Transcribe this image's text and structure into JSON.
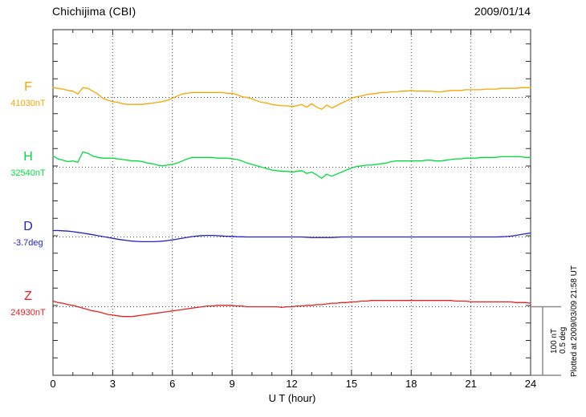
{
  "header": {
    "title": "Chichijima (CBI)",
    "date": "2009/01/14"
  },
  "axis": {
    "xlabel": "U T (hour)",
    "xticks": [
      0,
      3,
      6,
      9,
      12,
      15,
      18,
      21,
      24
    ],
    "xmin": 0,
    "xmax": 24
  },
  "scalebar": {
    "label_nT": "100 nT",
    "label_deg": "0.5 deg"
  },
  "footer_note": "Plotted at 2009/03/09 21:58 UT",
  "grid_color": "#444444",
  "frame_color": "#2a2a2a",
  "scalebar_color": "#888888",
  "channels": [
    {
      "label": "F",
      "base_label": "41030nT",
      "color": "#F7A600"
    },
    {
      "label": "H",
      "base_label": "32540nT",
      "color": "#00DC3C"
    },
    {
      "label": "D",
      "base_label": "-3.7deg",
      "color": "#2222CC"
    },
    {
      "label": "Z",
      "base_label": "24930nT",
      "color": "#E62222"
    }
  ],
  "chart_data": {
    "type": "line",
    "title": "Chichijima (CBI)",
    "date": "2009/01/14",
    "xlabel": "U T (hour)",
    "xticks": [
      0,
      3,
      6,
      9,
      12,
      15,
      18,
      21,
      24
    ],
    "x_range": [
      0,
      24
    ],
    "x_step_hours": 0.25,
    "grid": "dotted vertical lines every 3 h; dotted horizontal baseline per trace",
    "legend_position": "left margin, one colored label per trace",
    "scale": {
      "nT_per_division": 100,
      "deg_per_division": 0.5
    },
    "series": [
      {
        "name": "F",
        "unit": "nT",
        "baseline": 41030,
        "baseline_label": "41030nT",
        "color": "#F7A600",
        "deltas": [
          14,
          13,
          12,
          10,
          9,
          5,
          14,
          13,
          9,
          5,
          -1,
          -4,
          -6,
          -7,
          -9,
          -10,
          -10,
          -10,
          -10,
          -9,
          -8,
          -7,
          -6,
          -4,
          -1,
          2,
          5,
          6,
          7,
          7,
          7,
          7,
          7,
          7,
          7,
          6,
          6,
          4,
          1,
          0,
          -2,
          -5,
          -7,
          -8,
          -10,
          -11,
          -12,
          -12,
          -13,
          -12,
          -10,
          -14,
          -9,
          -14,
          -17,
          -11,
          -15,
          -12,
          -8,
          -5,
          -1,
          1,
          2,
          4,
          5,
          6,
          7,
          7,
          8,
          8,
          9,
          9,
          10,
          9,
          9,
          9,
          9,
          8,
          8,
          9,
          10,
          10,
          10,
          11,
          11,
          11,
          11,
          12,
          12,
          12,
          13,
          13,
          13,
          13,
          14,
          14,
          14
        ]
      },
      {
        "name": "H",
        "unit": "nT",
        "baseline": 32540,
        "baseline_label": "32540nT",
        "color": "#00DC3C",
        "deltas": [
          16,
          12,
          10,
          8,
          9,
          7,
          22,
          20,
          16,
          14,
          13,
          13,
          13,
          12,
          11,
          10,
          9,
          9,
          8,
          6,
          5,
          3,
          2,
          3,
          4,
          6,
          9,
          12,
          14,
          14,
          14,
          14,
          14,
          13,
          13,
          13,
          12,
          11,
          9,
          6,
          4,
          2,
          0,
          -2,
          -4,
          -5,
          -6,
          -6,
          -7,
          -6,
          -5,
          -9,
          -7,
          -11,
          -16,
          -10,
          -13,
          -10,
          -7,
          -4,
          -1,
          1,
          2,
          3,
          3,
          4,
          5,
          6,
          8,
          9,
          9,
          9,
          9,
          9,
          9,
          10,
          10,
          9,
          9,
          10,
          11,
          12,
          12,
          13,
          13,
          13,
          14,
          14,
          14,
          14,
          15,
          15,
          15,
          15,
          15,
          14,
          14
        ]
      },
      {
        "name": "D",
        "unit": "deg",
        "baseline": -3.7,
        "baseline_label": "-3.7deg",
        "color": "#2222CC",
        "deltas": [
          0.046,
          0.046,
          0.044,
          0.042,
          0.038,
          0.033,
          0.028,
          0.022,
          0.016,
          0.009,
          0.003,
          -0.003,
          -0.01,
          -0.016,
          -0.021,
          -0.026,
          -0.03,
          -0.032,
          -0.034,
          -0.034,
          -0.034,
          -0.032,
          -0.03,
          -0.026,
          -0.021,
          -0.015,
          -0.009,
          -0.003,
          0.003,
          0.007,
          0.01,
          0.011,
          0.011,
          0.009,
          0.007,
          0.005,
          0.004,
          0.002,
          0.001,
          0,
          0,
          0,
          0,
          0,
          0,
          0,
          0,
          0,
          0,
          0,
          0,
          -0.002,
          -0.004,
          -0.004,
          -0.004,
          -0.004,
          -0.004,
          -0.002,
          0,
          0,
          0,
          0,
          0,
          0,
          0,
          0,
          0,
          0,
          0,
          0,
          0,
          0,
          0,
          0,
          0,
          0,
          0,
          0,
          0,
          0,
          0,
          0,
          0,
          0,
          0,
          0,
          0,
          0,
          0,
          0,
          0.001,
          0.003,
          0.006,
          0.011,
          0.017,
          0.023,
          0.029
        ]
      },
      {
        "name": "Z",
        "unit": "nT",
        "baseline": 24930,
        "baseline_label": "24930nT",
        "color": "#E62222",
        "deltas": [
          8,
          6,
          5,
          3,
          2,
          0,
          -2,
          -4,
          -6,
          -7,
          -9,
          -11,
          -12,
          -13,
          -14,
          -14,
          -14,
          -13,
          -12,
          -11,
          -10,
          -9,
          -8,
          -7,
          -6,
          -5,
          -4,
          -3,
          -2,
          -1,
          0,
          1,
          1,
          2,
          2,
          2,
          2,
          1,
          1,
          0,
          0,
          0,
          0,
          0,
          0,
          0,
          -1,
          0,
          0,
          1,
          1,
          2,
          2,
          3,
          3,
          4,
          5,
          5,
          6,
          6,
          7,
          7,
          8,
          8,
          9,
          9,
          9,
          9,
          9,
          9,
          9,
          9,
          9,
          9,
          9,
          9,
          9,
          9,
          9,
          9,
          9,
          8,
          8,
          8,
          7,
          7,
          7,
          7,
          7,
          7,
          7,
          7,
          7,
          6,
          6,
          6,
          5
        ]
      }
    ]
  }
}
